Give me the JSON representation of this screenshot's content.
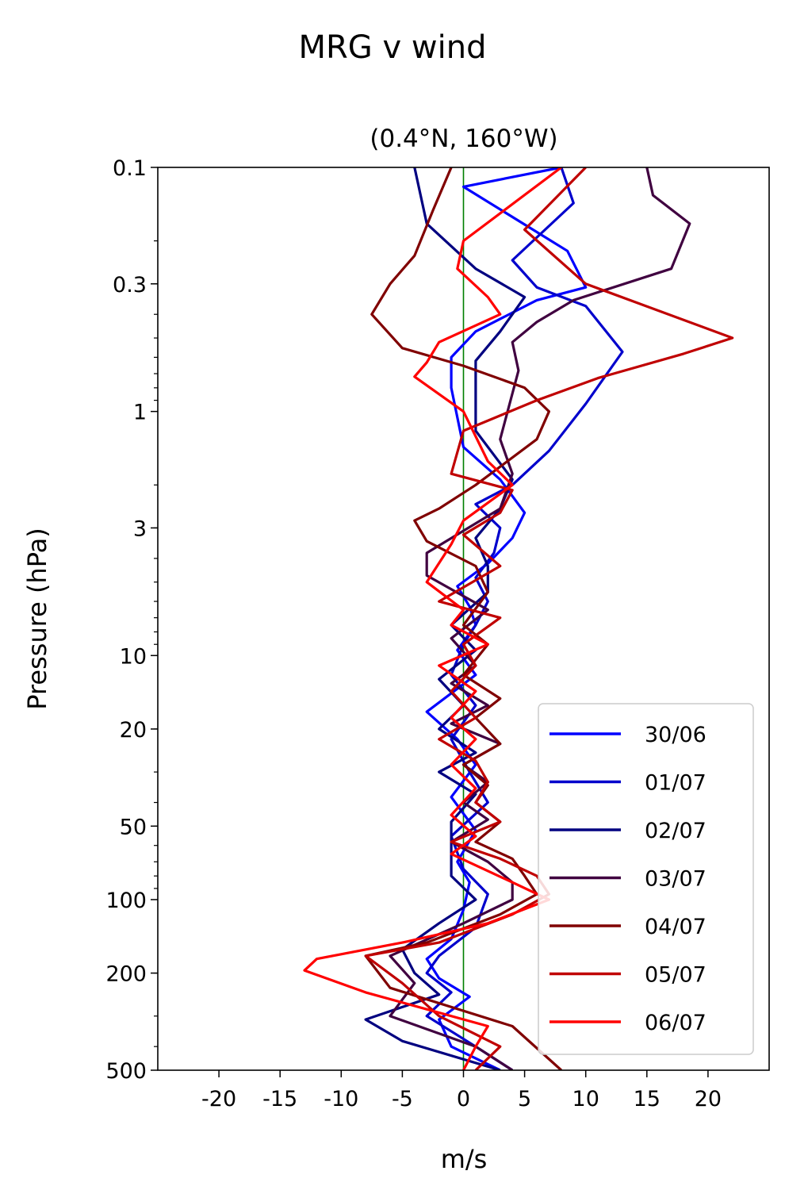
{
  "chart_data": {
    "type": "line",
    "title": "MRG v wind",
    "subtitle": "(0.4°N, 160°W)",
    "xlabel": "m/s",
    "ylabel": "Pressure (hPa)",
    "xlim": [
      -25,
      25
    ],
    "ylim": [
      500,
      0.1
    ],
    "y_scale": "log",
    "x_ticks": [
      -20,
      -15,
      -10,
      -5,
      0,
      5,
      10,
      15,
      20
    ],
    "x_tick_labels": [
      "-20",
      "-15",
      "-10",
      "-5",
      "0",
      "5",
      "10",
      "15",
      "20"
    ],
    "y_ticks": [
      0.1,
      0.3,
      1,
      3,
      10,
      20,
      50,
      100,
      200,
      500
    ],
    "y_tick_labels": [
      "0.1",
      "0.3",
      "1",
      "3",
      "10",
      "20",
      "50",
      "100",
      "200",
      "500"
    ],
    "zero_line_color": "#007f00",
    "legend_position": "lower right",
    "series": [
      {
        "name": "30/06",
        "color": "#0000ff",
        "points": [
          [
            8,
            0.1
          ],
          [
            0,
            0.12
          ],
          [
            8.5,
            0.22
          ],
          [
            10,
            0.31
          ],
          [
            6,
            0.35
          ],
          [
            1,
            0.47
          ],
          [
            -1,
            0.6
          ],
          [
            -1,
            0.8
          ],
          [
            0,
            1.4
          ],
          [
            3,
            1.9
          ],
          [
            5,
            2.6
          ],
          [
            4,
            3.3
          ],
          [
            2,
            4.2
          ],
          [
            -0.5,
            5.2
          ],
          [
            0.5,
            6.3
          ],
          [
            1,
            7.5
          ],
          [
            -0.5,
            9.5
          ],
          [
            1,
            12
          ],
          [
            -3,
            17
          ],
          [
            -0.5,
            22
          ],
          [
            1,
            28
          ],
          [
            -1,
            38
          ],
          [
            1,
            52
          ],
          [
            -0.5,
            70
          ],
          [
            0.5,
            85
          ],
          [
            0,
            110
          ],
          [
            -1,
            145
          ],
          [
            -3,
            175
          ],
          [
            -2,
            210
          ],
          [
            0.5,
            250
          ],
          [
            -2,
            310
          ],
          [
            -1,
            400
          ],
          [
            3,
            500
          ]
        ]
      },
      {
        "name": "01/07",
        "color": "#0000cc",
        "points": [
          [
            8,
            0.1
          ],
          [
            9,
            0.14
          ],
          [
            4,
            0.24
          ],
          [
            6,
            0.31
          ],
          [
            10,
            0.37
          ],
          [
            13,
            0.57
          ],
          [
            10,
            0.93
          ],
          [
            7,
            1.45
          ],
          [
            4,
            2
          ],
          [
            1,
            2.4
          ],
          [
            3,
            3
          ],
          [
            2.5,
            3.8
          ],
          [
            1,
            4.8
          ],
          [
            2,
            6
          ],
          [
            1,
            7.5
          ],
          [
            0,
            9
          ],
          [
            -1,
            12
          ],
          [
            1,
            16
          ],
          [
            -1,
            22
          ],
          [
            0.5,
            30
          ],
          [
            2,
            40
          ],
          [
            -1,
            55
          ],
          [
            0,
            75
          ],
          [
            2,
            95
          ],
          [
            1,
            130
          ],
          [
            -2,
            170
          ],
          [
            -3,
            200
          ],
          [
            -1,
            240
          ],
          [
            -3,
            300
          ],
          [
            1,
            400
          ],
          [
            4,
            500
          ]
        ]
      },
      {
        "name": "02/07",
        "color": "#000080",
        "points": [
          [
            -4,
            0.1
          ],
          [
            -3,
            0.17
          ],
          [
            1,
            0.26
          ],
          [
            5,
            0.34
          ],
          [
            3,
            0.47
          ],
          [
            1,
            0.62
          ],
          [
            1,
            0.8
          ],
          [
            1,
            1.2
          ],
          [
            4,
            1.9
          ],
          [
            3,
            2.5
          ],
          [
            1,
            3.3
          ],
          [
            2,
            4.3
          ],
          [
            2,
            5.5
          ],
          [
            -1,
            7.5
          ],
          [
            1,
            9.5
          ],
          [
            -2,
            12.5
          ],
          [
            0,
            16
          ],
          [
            -2,
            20
          ],
          [
            1,
            25
          ],
          [
            -2,
            30
          ],
          [
            1,
            37
          ],
          [
            -1,
            48
          ],
          [
            -1,
            62
          ],
          [
            -1,
            80
          ],
          [
            1,
            100
          ],
          [
            -2,
            125
          ],
          [
            -5,
            160
          ],
          [
            -4,
            200
          ],
          [
            -2,
            245
          ],
          [
            -8,
            310
          ],
          [
            -5,
            380
          ],
          [
            3,
            500
          ]
        ]
      },
      {
        "name": "03/07",
        "color": "#400040",
        "points": [
          [
            15,
            0.1
          ],
          [
            15.5,
            0.13
          ],
          [
            18.5,
            0.17
          ],
          [
            17,
            0.26
          ],
          [
            9,
            0.35
          ],
          [
            6,
            0.43
          ],
          [
            4,
            0.52
          ],
          [
            4.5,
            0.68
          ],
          [
            3,
            1.3
          ],
          [
            4,
            1.8
          ],
          [
            3,
            2.5
          ],
          [
            -3,
            3.8
          ],
          [
            -3,
            4.7
          ],
          [
            2,
            6.5
          ],
          [
            -1,
            8.5
          ],
          [
            1,
            11
          ],
          [
            -1,
            13
          ],
          [
            2,
            16
          ],
          [
            -1,
            19
          ],
          [
            3,
            23
          ],
          [
            0,
            28
          ],
          [
            2,
            33
          ],
          [
            0,
            40
          ],
          [
            2,
            47
          ],
          [
            -1,
            58
          ],
          [
            2,
            70
          ],
          [
            4,
            85
          ],
          [
            4,
            100
          ],
          [
            0,
            125
          ],
          [
            -6,
            170
          ],
          [
            -4,
            220
          ],
          [
            -6,
            300
          ],
          [
            1,
            400
          ],
          [
            4,
            500
          ]
        ]
      },
      {
        "name": "04/07",
        "color": "#800000",
        "points": [
          [
            -1,
            0.1
          ],
          [
            -2.5,
            0.15
          ],
          [
            -4,
            0.23
          ],
          [
            -6,
            0.3
          ],
          [
            -7.5,
            0.4
          ],
          [
            -5,
            0.55
          ],
          [
            0,
            0.65
          ],
          [
            5,
            0.8
          ],
          [
            7,
            1
          ],
          [
            6,
            1.3
          ],
          [
            1,
            2
          ],
          [
            -2,
            2.5
          ],
          [
            -4,
            2.8
          ],
          [
            -3,
            3.4
          ],
          [
            1,
            4.3
          ],
          [
            2,
            5.5
          ],
          [
            0,
            7.5
          ],
          [
            2,
            9
          ],
          [
            0,
            12
          ],
          [
            3,
            15
          ],
          [
            1,
            18
          ],
          [
            3,
            23
          ],
          [
            0,
            28
          ],
          [
            2,
            34
          ],
          [
            1,
            40
          ],
          [
            3,
            48
          ],
          [
            1,
            58
          ],
          [
            4,
            68
          ],
          [
            5,
            80
          ],
          [
            6,
            95
          ],
          [
            3,
            115
          ],
          [
            -3,
            150
          ],
          [
            -8,
            170
          ],
          [
            -6,
            230
          ],
          [
            4,
            330
          ],
          [
            8,
            500
          ]
        ]
      },
      {
        "name": "05/07",
        "color": "#c00000",
        "points": [
          [
            10,
            0.1
          ],
          [
            5,
            0.18
          ],
          [
            10,
            0.3
          ],
          [
            22,
            0.5
          ],
          [
            18,
            0.58
          ],
          [
            11,
            0.73
          ],
          [
            6,
            0.9
          ],
          [
            0,
            1.2
          ],
          [
            -1,
            1.8
          ],
          [
            4,
            2.1
          ],
          [
            3,
            2.6
          ],
          [
            0,
            3.2
          ],
          [
            3,
            4.3
          ],
          [
            -2,
            6
          ],
          [
            3,
            7
          ],
          [
            0,
            9
          ],
          [
            1,
            11
          ],
          [
            -1,
            14
          ],
          [
            1,
            18
          ],
          [
            -2,
            22
          ],
          [
            1,
            27
          ],
          [
            2,
            33
          ],
          [
            1,
            40
          ],
          [
            3,
            48
          ],
          [
            -1,
            58
          ],
          [
            3,
            68
          ],
          [
            6,
            80
          ],
          [
            7,
            95
          ],
          [
            4,
            115
          ],
          [
            -2,
            150
          ],
          [
            -8,
            170
          ],
          [
            -5,
            220
          ],
          [
            -2,
            300
          ],
          [
            3,
            400
          ],
          [
            1,
            500
          ]
        ]
      },
      {
        "name": "06/07",
        "color": "#ff0000",
        "points": [
          [
            8,
            0.1
          ],
          [
            0,
            0.2
          ],
          [
            -0.5,
            0.26
          ],
          [
            2,
            0.34
          ],
          [
            3,
            0.4
          ],
          [
            -2,
            0.52
          ],
          [
            -3,
            0.63
          ],
          [
            -4,
            0.72
          ],
          [
            0,
            1
          ],
          [
            2,
            1.6
          ],
          [
            4,
            2
          ],
          [
            0,
            2.8
          ],
          [
            -1,
            3.5
          ],
          [
            -3,
            5
          ],
          [
            0,
            6.5
          ],
          [
            -1,
            7.5
          ],
          [
            2,
            9
          ],
          [
            -2,
            11
          ],
          [
            1,
            14
          ],
          [
            -1,
            18
          ],
          [
            1,
            22
          ],
          [
            -1,
            28
          ],
          [
            1,
            35
          ],
          [
            -1,
            45
          ],
          [
            1,
            55
          ],
          [
            -1,
            65
          ],
          [
            4,
            85
          ],
          [
            7,
            100
          ],
          [
            2,
            125
          ],
          [
            -5,
            150
          ],
          [
            -12,
            175
          ],
          [
            -13,
            195
          ],
          [
            -8,
            240
          ],
          [
            2,
            330
          ],
          [
            1,
            400
          ],
          [
            0,
            500
          ]
        ]
      }
    ]
  }
}
